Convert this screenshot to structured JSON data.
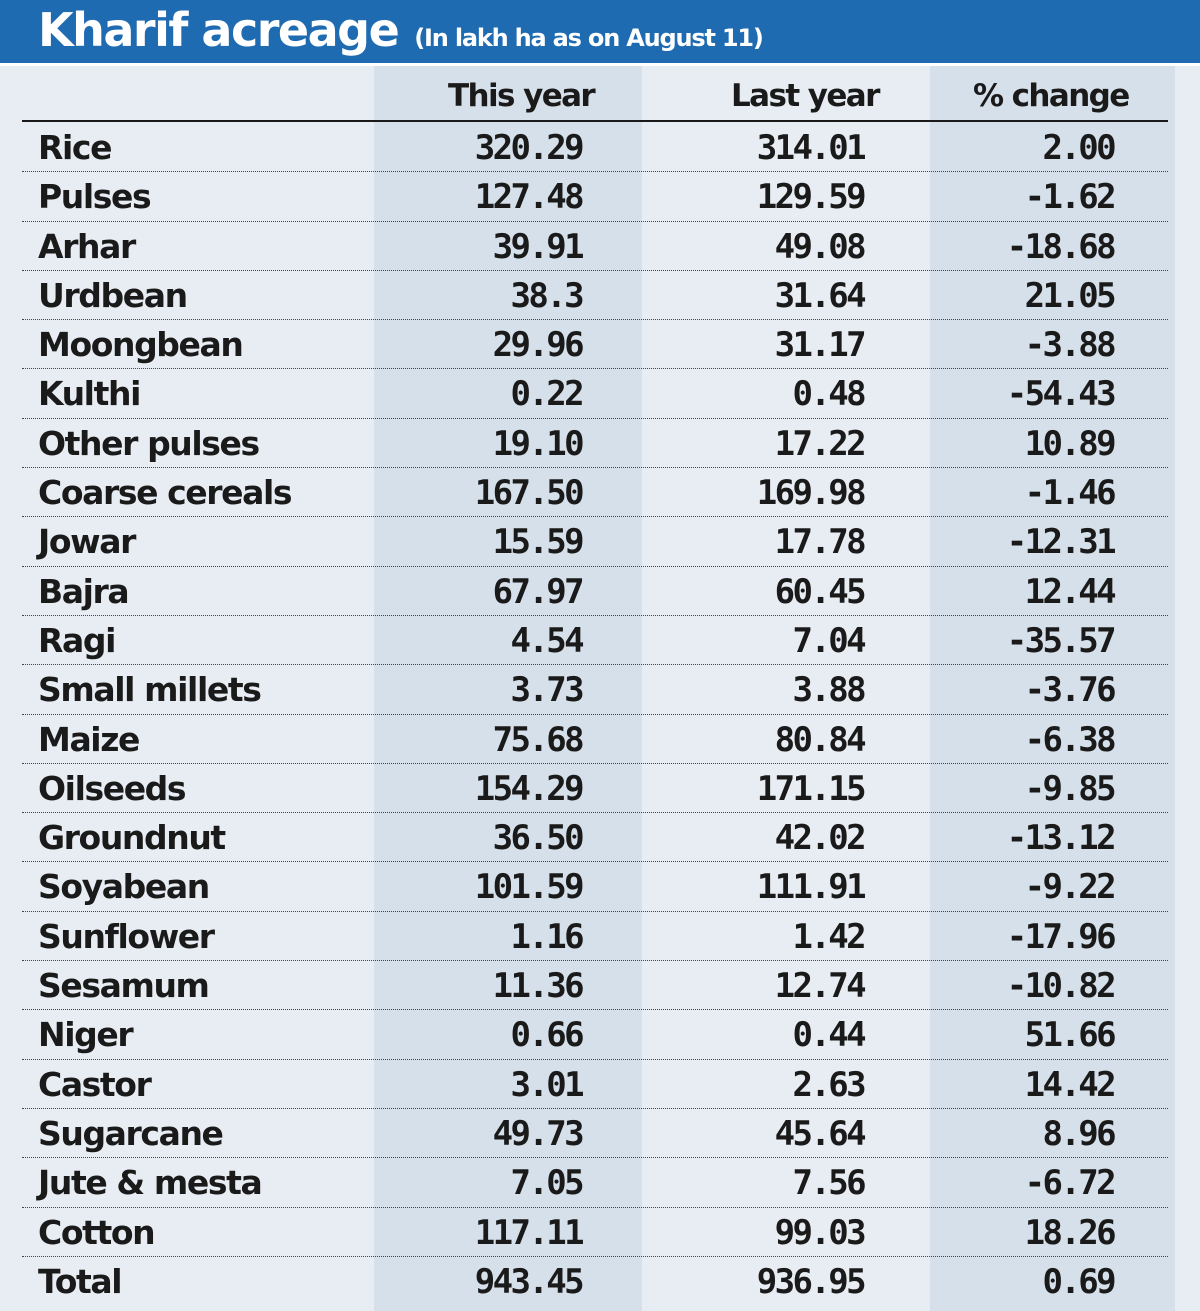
{
  "title": "Kharif acreage",
  "subtitle": "(In lakh ha as on August 11)",
  "colors": {
    "header_bg": "#1e6bb2",
    "page_bg": "#e7edf3",
    "band_bg": "#d6e0ea",
    "text": "#1a1a1a"
  },
  "columns": [
    "",
    "This year",
    "Last year",
    "% change"
  ],
  "chart_data": {
    "type": "table",
    "title": "Kharif acreage",
    "subtitle": "(In lakh ha as on August 11)",
    "columns": [
      "",
      "This year",
      "Last year",
      "% change"
    ],
    "rows": [
      [
        "Rice",
        "320.29",
        "314.01",
        "2.00"
      ],
      [
        "Pulses",
        "127.48",
        "129.59",
        "-1.62"
      ],
      [
        "Arhar",
        "39.91",
        "49.08",
        "-18.68"
      ],
      [
        "Urdbean",
        "38.3",
        "31.64",
        "21.05"
      ],
      [
        "Moongbean",
        "29.96",
        "31.17",
        "-3.88"
      ],
      [
        "Kulthi",
        "0.22",
        "0.48",
        "-54.43"
      ],
      [
        "Other pulses",
        "19.10",
        "17.22",
        "10.89"
      ],
      [
        "Coarse cereals",
        "167.50",
        "169.98",
        "-1.46"
      ],
      [
        "Jowar",
        "15.59",
        "17.78",
        "-12.31"
      ],
      [
        "Bajra",
        "67.97",
        "60.45",
        "12.44"
      ],
      [
        "Ragi",
        "4.54",
        "7.04",
        "-35.57"
      ],
      [
        "Small millets",
        "3.73",
        "3.88",
        "-3.76"
      ],
      [
        "Maize",
        "75.68",
        "80.84",
        "-6.38"
      ],
      [
        "Oilseeds",
        "154.29",
        "171.15",
        "-9.85"
      ],
      [
        "Groundnut",
        "36.50",
        "42.02",
        "-13.12"
      ],
      [
        "Soyabean",
        "101.59",
        "111.91",
        "-9.22"
      ],
      [
        "Sunflower",
        "1.16",
        "1.42",
        "-17.96"
      ],
      [
        "Sesamum",
        "11.36",
        "12.74",
        "-10.82"
      ],
      [
        "Niger",
        "0.66",
        "0.44",
        "51.66"
      ],
      [
        "Castor",
        "3.01",
        "2.63",
        "14.42"
      ],
      [
        "Sugarcane",
        "49.73",
        "45.64",
        "8.96"
      ],
      [
        "Jute & mesta",
        "7.05",
        "7.56",
        "-6.72"
      ],
      [
        "Cotton",
        "117.11",
        "99.03",
        "18.26"
      ],
      [
        "Total",
        "943.45",
        "936.95",
        "0.69"
      ]
    ]
  }
}
